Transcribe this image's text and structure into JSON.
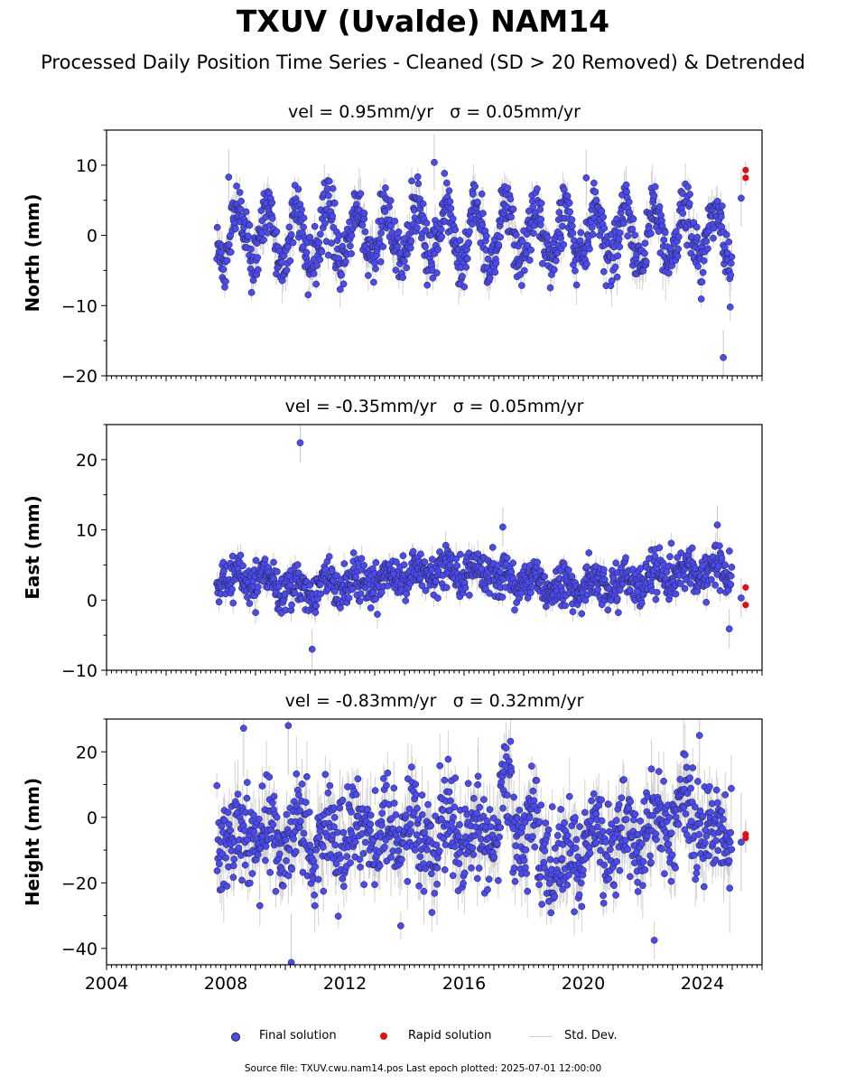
{
  "title": "TXUV (Uvalde) NAM14",
  "subtitle": "Processed Daily Position Time Series - Cleaned (SD > 20 Removed) & Detrended",
  "footer": "Source file: TXUV.cwu.nam14.pos  Last epoch plotted: 2025-07-01 12:00:00",
  "legend": {
    "final": "Final solution",
    "rapid": "Rapid solution",
    "stddev": "Std. Dev."
  },
  "colors": {
    "final": "#4a4af5",
    "rapid": "#e01010",
    "stddev": "#c8c8c8"
  },
  "chart_data": [
    {
      "type": "scatter",
      "panel": "north",
      "vel_text": "vel = 0.95mm/yr",
      "sigma_text": "σ = 0.05mm/yr",
      "ylabel": "North (mm)",
      "ylim": [
        -20,
        15
      ],
      "yticks": [
        -20,
        -10,
        0,
        10
      ],
      "yticklabels": [
        "−20",
        "−10",
        "0",
        "10"
      ],
      "xlim": [
        2004,
        2026
      ],
      "final_span": [
        2007.7,
        2024.98
      ],
      "noise_sd": 2.0,
      "annual_amp": 4.0,
      "rapid_points": [
        [
          2025.45,
          9.3
        ],
        [
          2025.45,
          8.2
        ]
      ],
      "outliers": [
        [
          2024.7,
          -17.4
        ],
        [
          2015.0,
          10.4
        ],
        [
          2008.1,
          8.3
        ],
        [
          2020.1,
          8.2
        ],
        [
          2025.3,
          5.3
        ]
      ],
      "xticklabels_shown": false
    },
    {
      "type": "scatter",
      "panel": "east",
      "vel_text": "vel = -0.35mm/yr",
      "sigma_text": "σ = 0.05mm/yr",
      "ylabel": "East (mm)",
      "ylim": [
        -10,
        25
      ],
      "yticks": [
        -10,
        0,
        10,
        20
      ],
      "yticklabels": [
        "−10",
        "0",
        "10",
        "20"
      ],
      "xlim": [
        2004,
        2026
      ],
      "final_span": [
        2007.7,
        2024.98
      ],
      "noise_sd": 1.4,
      "annual_amp": 1.0,
      "rapid_points": [
        [
          2025.45,
          1.8
        ],
        [
          2025.45,
          -0.7
        ]
      ],
      "outliers": [
        [
          2010.5,
          22.4
        ],
        [
          2010.9,
          -7.0
        ],
        [
          2024.5,
          10.7
        ],
        [
          2017.3,
          10.4
        ],
        [
          2024.9,
          -4.1
        ],
        [
          2025.3,
          0.3
        ]
      ],
      "xticklabels_shown": false
    },
    {
      "type": "scatter",
      "panel": "height",
      "vel_text": "vel = -0.83mm/yr",
      "sigma_text": "σ = 0.32mm/yr",
      "ylabel": "Height (mm)",
      "ylim": [
        -45,
        30
      ],
      "yticks": [
        -40,
        -20,
        0,
        20
      ],
      "yticklabels": [
        "−40",
        "−20",
        "0",
        "20"
      ],
      "xlim": [
        2004,
        2026
      ],
      "final_span": [
        2007.7,
        2024.98
      ],
      "noise_sd": 7.5,
      "annual_amp": 4.5,
      "rapid_points": [
        [
          2025.45,
          -5.2
        ],
        [
          2025.45,
          -6.3
        ]
      ],
      "outliers": [
        [
          2010.1,
          28.0
        ],
        [
          2008.6,
          27.2
        ],
        [
          2010.2,
          -44.3
        ],
        [
          2023.9,
          25.0
        ],
        [
          2025.3,
          -7.6
        ]
      ],
      "xticks": [
        2004,
        2008,
        2012,
        2016,
        2020,
        2024
      ],
      "xticklabels": [
        "2004",
        "2008",
        "2012",
        "2016",
        "2020",
        "2024"
      ],
      "xticklabels_shown": true
    }
  ]
}
